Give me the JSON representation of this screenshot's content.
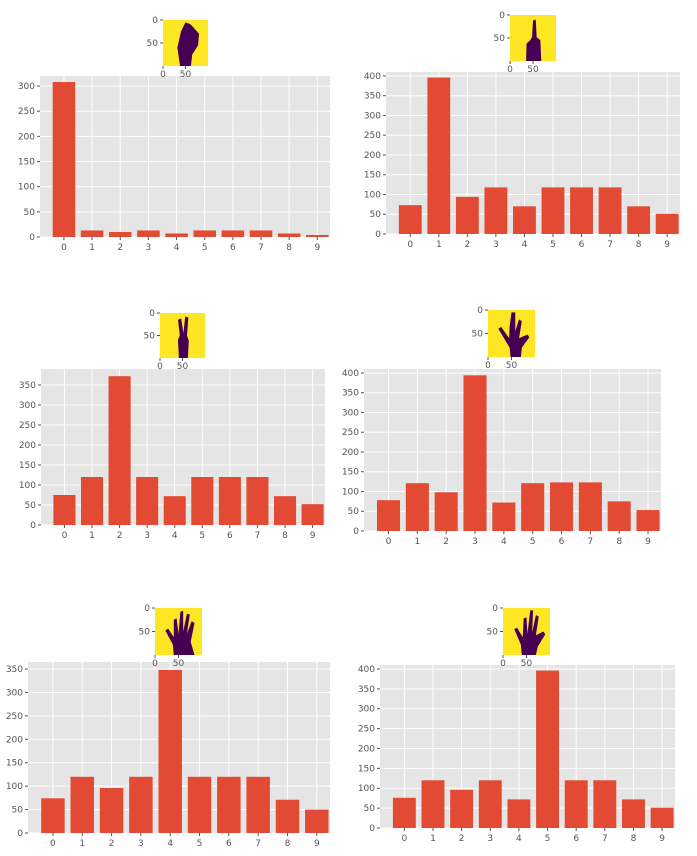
{
  "colors": {
    "bar": "#E24A33",
    "plot_bg": "#E5E5E5",
    "grid": "#FFFFFF",
    "thumb_bg": "#FDE725",
    "hand": "#440154",
    "tick_text": "#555555"
  },
  "chart_data": [
    {
      "type": "bar",
      "categories": [
        "0",
        "1",
        "2",
        "3",
        "4",
        "5",
        "6",
        "7",
        "8",
        "9"
      ],
      "values": [
        308,
        13,
        10,
        13,
        7,
        13,
        13,
        13,
        7,
        4
      ],
      "ylim": [
        0,
        320
      ],
      "yticks": [
        0,
        50,
        100,
        150,
        200,
        250,
        300
      ],
      "grid": true,
      "thumbnail": {
        "icon": "hand-fist-icon",
        "yticks": [
          "0",
          "50"
        ],
        "xticks": [
          "0",
          "50"
        ]
      }
    },
    {
      "type": "bar",
      "categories": [
        "0",
        "1",
        "2",
        "3",
        "4",
        "5",
        "6",
        "7",
        "8",
        "9"
      ],
      "values": [
        73,
        396,
        94,
        118,
        70,
        118,
        118,
        118,
        70,
        51
      ],
      "ylim": [
        0,
        410
      ],
      "yticks": [
        0,
        50,
        100,
        150,
        200,
        250,
        300,
        350,
        400
      ],
      "grid": true,
      "thumbnail": {
        "icon": "hand-one-finger-icon",
        "yticks": [
          "0",
          "50"
        ],
        "xticks": [
          "0",
          "50"
        ]
      }
    },
    {
      "type": "bar",
      "categories": [
        "0",
        "1",
        "2",
        "3",
        "4",
        "5",
        "6",
        "7",
        "8",
        "9"
      ],
      "values": [
        75,
        120,
        372,
        120,
        72,
        120,
        120,
        120,
        72,
        52
      ],
      "ylim": [
        0,
        390
      ],
      "yticks": [
        0,
        50,
        100,
        150,
        200,
        250,
        300,
        350
      ],
      "grid": true,
      "thumbnail": {
        "icon": "hand-two-fingers-icon",
        "yticks": [
          "0",
          "50"
        ],
        "xticks": [
          "0",
          "50"
        ]
      }
    },
    {
      "type": "bar",
      "categories": [
        "0",
        "1",
        "2",
        "3",
        "4",
        "5",
        "6",
        "7",
        "8",
        "9"
      ],
      "values": [
        78,
        121,
        98,
        394,
        72,
        121,
        123,
        123,
        75,
        53
      ],
      "ylim": [
        0,
        410
      ],
      "yticks": [
        0,
        50,
        100,
        150,
        200,
        250,
        300,
        350,
        400
      ],
      "grid": true,
      "thumbnail": {
        "icon": "hand-three-fingers-icon",
        "yticks": [
          "0",
          "50"
        ],
        "xticks": [
          "0",
          "50"
        ]
      }
    },
    {
      "type": "bar",
      "categories": [
        "0",
        "1",
        "2",
        "3",
        "4",
        "5",
        "6",
        "7",
        "8",
        "9"
      ],
      "values": [
        74,
        120,
        96,
        120,
        348,
        120,
        120,
        120,
        71,
        50
      ],
      "ylim": [
        0,
        365
      ],
      "yticks": [
        0,
        50,
        100,
        150,
        200,
        250,
        300,
        350
      ],
      "grid": true,
      "thumbnail": {
        "icon": "hand-four-fingers-icon",
        "yticks": [
          "0",
          "50"
        ],
        "xticks": [
          "0",
          "50"
        ]
      }
    },
    {
      "type": "bar",
      "categories": [
        "0",
        "1",
        "2",
        "3",
        "4",
        "5",
        "6",
        "7",
        "8",
        "9"
      ],
      "values": [
        76,
        120,
        96,
        120,
        72,
        396,
        120,
        120,
        72,
        51
      ],
      "ylim": [
        0,
        410
      ],
      "yticks": [
        0,
        50,
        100,
        150,
        200,
        250,
        300,
        350,
        400
      ],
      "grid": true,
      "thumbnail": {
        "icon": "hand-five-fingers-icon",
        "yticks": [
          "0",
          "50"
        ],
        "xticks": [
          "0",
          "50"
        ]
      }
    }
  ]
}
